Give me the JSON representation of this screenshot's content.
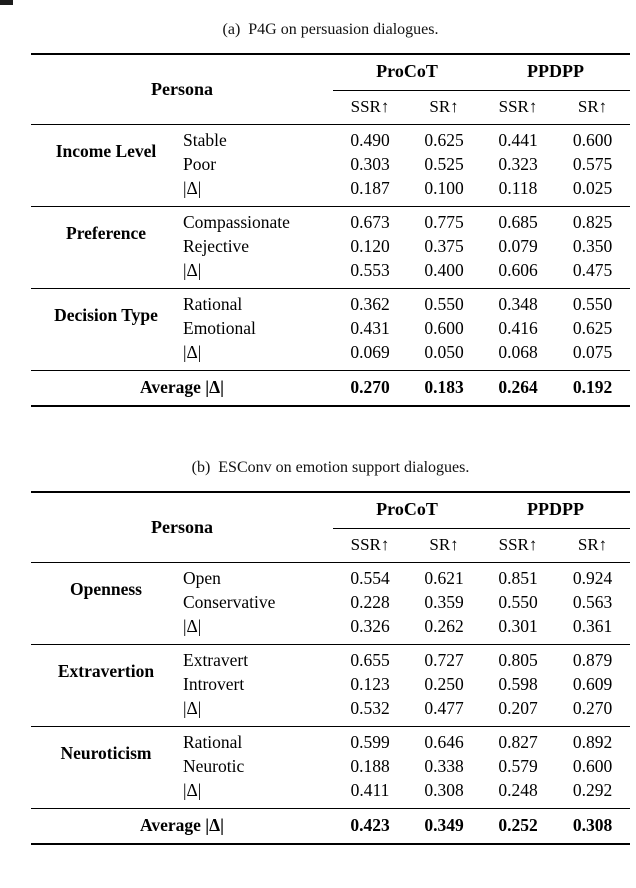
{
  "table_a": {
    "caption": "(a)  P4G on persuasion dialogues.",
    "header": {
      "persona": "Persona",
      "group_1": "ProCoT",
      "group_2": "PPDPP",
      "metrics": [
        "SSR↑",
        "SR↑",
        "SSR↑",
        "SR↑"
      ]
    },
    "sections": [
      {
        "label": "Income Level",
        "rows": [
          {
            "name": "Stable",
            "values": [
              "0.490",
              "0.625",
              "0.441",
              "0.600"
            ]
          },
          {
            "name": "Poor",
            "values": [
              "0.303",
              "0.525",
              "0.323",
              "0.575"
            ]
          },
          {
            "name": "|Δ|",
            "values": [
              "0.187",
              "0.100",
              "0.118",
              "0.025"
            ]
          }
        ]
      },
      {
        "label": "Preference",
        "rows": [
          {
            "name": "Compassionate",
            "values": [
              "0.673",
              "0.775",
              "0.685",
              "0.825"
            ]
          },
          {
            "name": "Rejective",
            "values": [
              "0.120",
              "0.375",
              "0.079",
              "0.350"
            ]
          },
          {
            "name": "|Δ|",
            "values": [
              "0.553",
              "0.400",
              "0.606",
              "0.475"
            ]
          }
        ]
      },
      {
        "label": "Decision Type",
        "rows": [
          {
            "name": "Rational",
            "values": [
              "0.362",
              "0.550",
              "0.348",
              "0.550"
            ]
          },
          {
            "name": "Emotional",
            "values": [
              "0.431",
              "0.600",
              "0.416",
              "0.625"
            ]
          },
          {
            "name": "|Δ|",
            "values": [
              "0.069",
              "0.050",
              "0.068",
              "0.075"
            ]
          }
        ]
      }
    ],
    "average": {
      "label": "Average |Δ|",
      "values": [
        "0.270",
        "0.183",
        "0.264",
        "0.192"
      ]
    }
  },
  "table_b": {
    "caption": "(b)  ESConv on emotion support dialogues.",
    "header": {
      "persona": "Persona",
      "group_1": "ProCoT",
      "group_2": "PPDPP",
      "metrics": [
        "SSR↑",
        "SR↑",
        "SSR↑",
        "SR↑"
      ]
    },
    "sections": [
      {
        "label": "Openness",
        "rows": [
          {
            "name": "Open",
            "values": [
              "0.554",
              "0.621",
              "0.851",
              "0.924"
            ]
          },
          {
            "name": "Conservative",
            "values": [
              "0.228",
              "0.359",
              "0.550",
              "0.563"
            ]
          },
          {
            "name": "|Δ|",
            "values": [
              "0.326",
              "0.262",
              "0.301",
              "0.361"
            ]
          }
        ]
      },
      {
        "label": "Extravertion",
        "rows": [
          {
            "name": "Extravert",
            "values": [
              "0.655",
              "0.727",
              "0.805",
              "0.879"
            ]
          },
          {
            "name": "Introvert",
            "values": [
              "0.123",
              "0.250",
              "0.598",
              "0.609"
            ]
          },
          {
            "name": "|Δ|",
            "values": [
              "0.532",
              "0.477",
              "0.207",
              "0.270"
            ]
          }
        ]
      },
      {
        "label": "Neuroticism",
        "rows": [
          {
            "name": "Rational",
            "values": [
              "0.599",
              "0.646",
              "0.827",
              "0.892"
            ]
          },
          {
            "name": "Neurotic",
            "values": [
              "0.188",
              "0.338",
              "0.579",
              "0.600"
            ]
          },
          {
            "name": "|Δ|",
            "values": [
              "0.411",
              "0.308",
              "0.248",
              "0.292"
            ]
          }
        ]
      }
    ],
    "average": {
      "label": "Average |Δ|",
      "values": [
        "0.423",
        "0.349",
        "0.252",
        "0.308"
      ]
    }
  }
}
